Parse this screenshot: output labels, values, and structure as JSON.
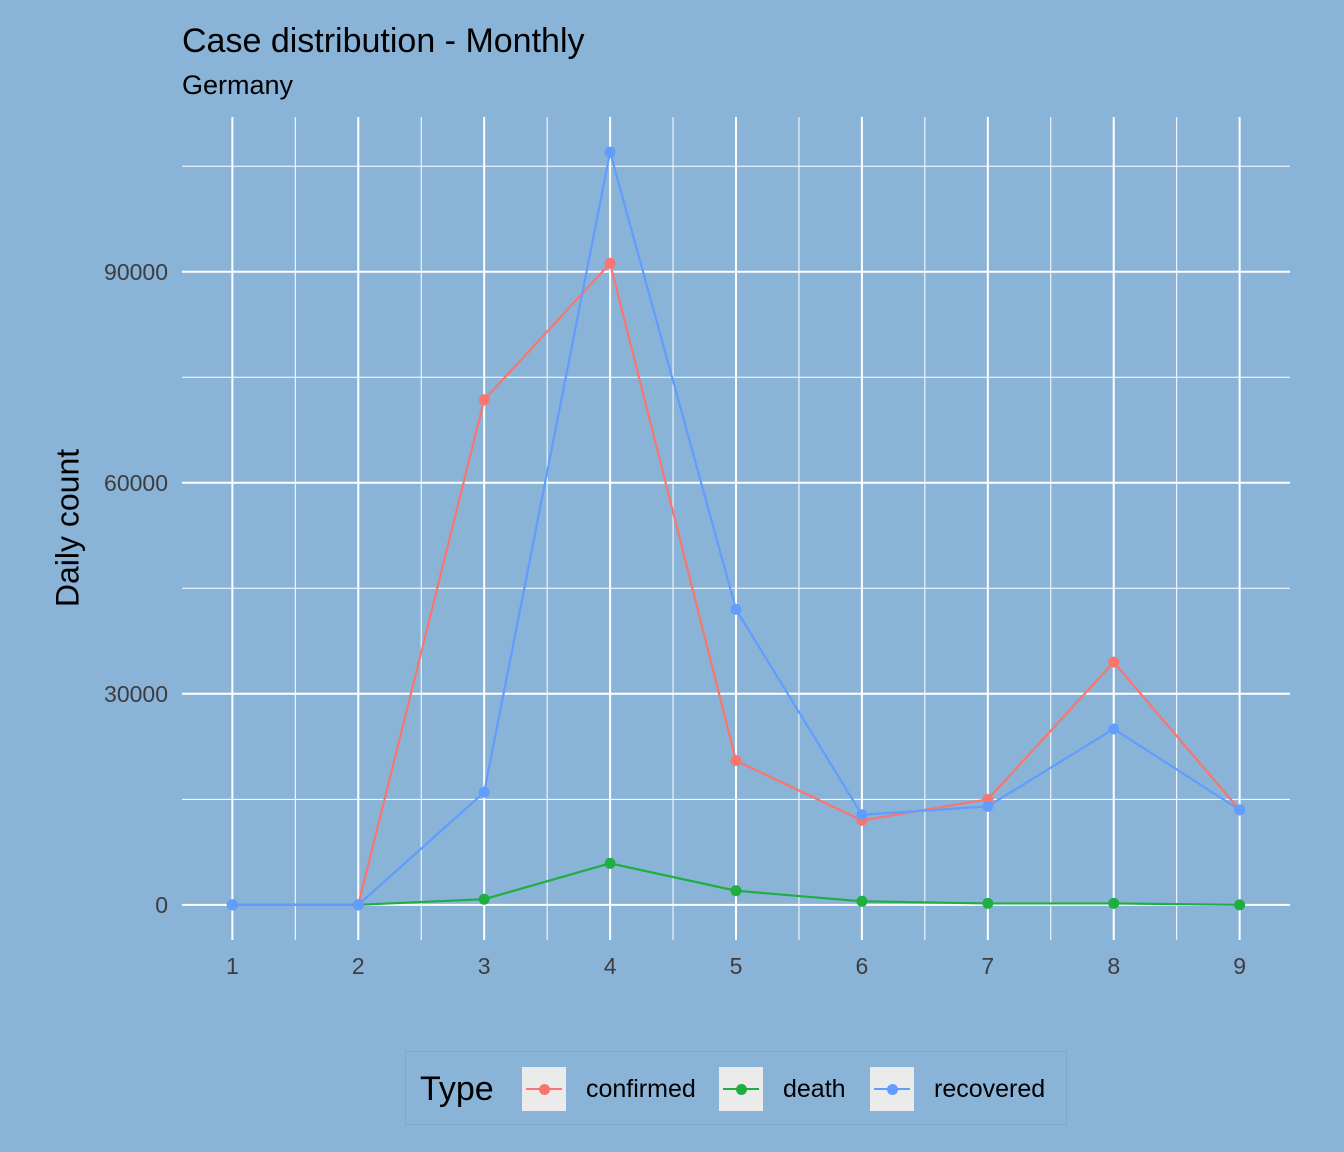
{
  "chart_data": {
    "type": "line",
    "title": "Case distribution - Monthly",
    "subtitle": "Germany",
    "xlabel": "",
    "ylabel": "Daily count",
    "x": [
      1,
      2,
      3,
      4,
      5,
      6,
      7,
      8,
      9
    ],
    "xlim": [
      0.6,
      9.4
    ],
    "ylim": [
      -5000,
      112000
    ],
    "yticks": [
      0,
      30000,
      60000,
      90000
    ],
    "ytick_labels": [
      "0",
      "30000",
      "60000",
      "90000"
    ],
    "xtick_labels": [
      "1",
      "2",
      "3",
      "4",
      "5",
      "6",
      "7",
      "8",
      "9"
    ],
    "grid": true,
    "legend": {
      "title": "Type",
      "position": "bottom"
    },
    "series": [
      {
        "name": "confirmed",
        "color": "#f8766d",
        "values": [
          0,
          0,
          71800,
          91200,
          20500,
          12000,
          15000,
          34500,
          13500
        ]
      },
      {
        "name": "death",
        "color": "#1fae40",
        "values": [
          0,
          0,
          800,
          5900,
          2000,
          500,
          200,
          200,
          0
        ]
      },
      {
        "name": "recovered",
        "color": "#619cff",
        "values": [
          0,
          0,
          16000,
          107000,
          42000,
          12800,
          14000,
          25000,
          13500
        ]
      }
    ]
  }
}
